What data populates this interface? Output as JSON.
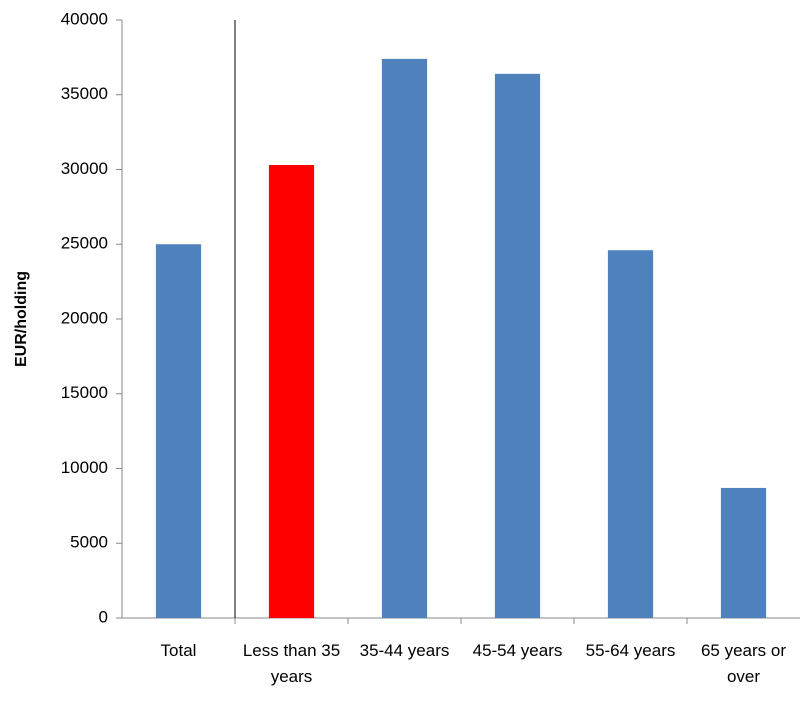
{
  "chart_data": {
    "type": "bar",
    "y_label": "EUR/holding",
    "categories": [
      "Total",
      "Less than 35 years",
      "35-44 years",
      "45-54 years",
      "55-64 years",
      "65 years or over"
    ],
    "values": [
      25000,
      30300,
      37400,
      36400,
      24600,
      8700
    ],
    "colors": [
      "#4f81bd",
      "#ff0000",
      "#4f81bd",
      "#4f81bd",
      "#4f81bd",
      "#4f81bd"
    ],
    "ylim": [
      0,
      40000
    ],
    "yticks": [
      0,
      5000,
      10000,
      15000,
      20000,
      25000,
      30000,
      35000,
      40000
    ],
    "grid": false
  }
}
